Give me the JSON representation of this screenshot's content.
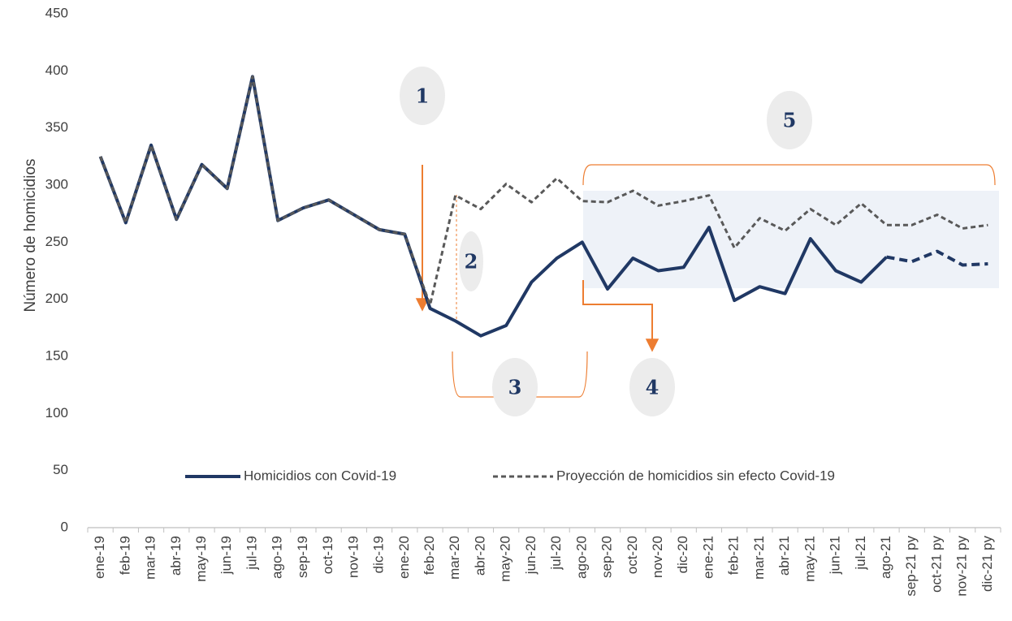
{
  "chart_data": {
    "type": "line",
    "y_axis_label": "Número de homicidios",
    "categories": [
      "ene-19",
      "feb-19",
      "mar-19",
      "abr-19",
      "may-19",
      "jun-19",
      "jul-19",
      "ago-19",
      "sep-19",
      "oct-19",
      "nov-19",
      "dic-19",
      "ene-20",
      "feb-20",
      "mar-20",
      "abr-20",
      "may-20",
      "jun-20",
      "jul-20",
      "ago-20",
      "sep-20",
      "oct-20",
      "nov-20",
      "dic-20",
      "ene-21",
      "feb-21",
      "mar-21",
      "abr-21",
      "may-21",
      "jun-21",
      "jul-21",
      "ago-21",
      "sep-21 py",
      "oct-21 py",
      "nov-21 py",
      "dic-21 py"
    ],
    "series": [
      {
        "name": "Homicidios con Covid-19",
        "color": "#203864",
        "line_style": "solid",
        "dashed_from": "ago-21",
        "values": [
          325,
          267,
          335,
          270,
          318,
          297,
          395,
          269,
          280,
          287,
          274,
          261,
          257,
          192,
          181,
          168,
          177,
          215,
          236,
          250,
          209,
          236,
          225,
          228,
          263,
          199,
          211,
          205,
          253,
          225,
          215,
          237,
          233,
          242,
          230,
          231
        ]
      },
      {
        "name": "Proyección de homicidios sin efecto Covid-19",
        "color": "#595959",
        "line_style": "dashed",
        "values": [
          325,
          267,
          335,
          270,
          318,
          297,
          395,
          269,
          280,
          287,
          274,
          261,
          257,
          195,
          291,
          279,
          301,
          285,
          306,
          286,
          285,
          295,
          282,
          286,
          291,
          245,
          271,
          260,
          279,
          265,
          284,
          265,
          265,
          274,
          262,
          265
        ]
      }
    ],
    "annotations": [
      "1",
      "2",
      "3",
      "4",
      "5"
    ],
    "ylim": [
      0,
      450
    ],
    "yticks": [
      0,
      50,
      100,
      150,
      200,
      250,
      300,
      350,
      400,
      450
    ],
    "grid": false
  }
}
